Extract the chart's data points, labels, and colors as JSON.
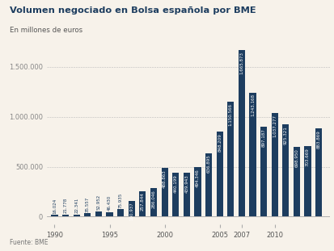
{
  "title": "Volumen negociado en Bolsa española por BME",
  "subtitle": "En millones de euros",
  "source": "Fuente: BME",
  "years": [
    1990,
    1991,
    1992,
    1993,
    1994,
    1995,
    1996,
    1997,
    1998,
    1999,
    2000,
    2001,
    2002,
    2003,
    2004,
    2005,
    2006,
    2007,
    2008,
    2009,
    2010,
    2011,
    2012,
    2013,
    2014
  ],
  "values": [
    16024,
    21778,
    22341,
    35557,
    52952,
    46430,
    75935,
    160937,
    257844,
    286046,
    488863,
    440199,
    439943,
    494346,
    636895,
    848209,
    1150566,
    1665873,
    1243168,
    897187,
    1037277,
    925321,
    698950,
    703669,
    883869
  ],
  "bar_color": "#1d3d5f",
  "bg_color": "#f7f2ea",
  "text_color": "#1d3d5f",
  "label_color_inside": "#ffffff",
  "label_color_outside": "#1d3d5f",
  "ytick_labels": [
    "0",
    "500.000",
    "1.000.000",
    "1.500.000"
  ],
  "ytick_values": [
    0,
    500000,
    1000000,
    1500000
  ],
  "xtick_years": [
    1990,
    1995,
    2000,
    2005,
    2007,
    2010
  ],
  "ylim_min": -80000,
  "ylim_max": 1780000,
  "xlim_min": 1989.3,
  "xlim_max": 2015.0,
  "bar_width": 0.6,
  "threshold_inside": 120000
}
